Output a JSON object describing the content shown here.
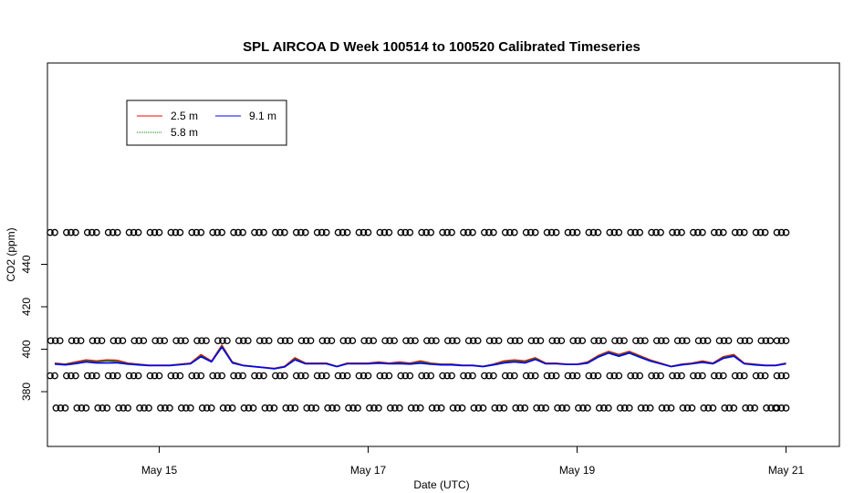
{
  "chart_data": {
    "type": "line",
    "title": "SPL AIRCOA D  Week 100514 to 100520  Calibrated Timeseries",
    "xlabel": "Date (UTC)",
    "ylabel": "CO2 (ppm)",
    "xlim": [
      0,
      7.1
    ],
    "ylim": [
      368,
      456
    ],
    "x_ticks": [
      {
        "x": 1,
        "label": "May 15"
      },
      {
        "x": 3,
        "label": "May 17"
      },
      {
        "x": 5,
        "label": "May 19"
      },
      {
        "x": 7,
        "label": "May 21"
      }
    ],
    "y_ticks": [
      {
        "y": 380,
        "label": "380"
      },
      {
        "y": 400,
        "label": "400"
      },
      {
        "y": 420,
        "label": "420"
      },
      {
        "y": 440,
        "label": "440"
      }
    ],
    "legend": {
      "placement": "top-left",
      "entries": [
        {
          "name": "2.5 m",
          "color": "#ff0000"
        },
        {
          "name": "5.8 m",
          "color": "#008000"
        },
        {
          "name": "9.1 m",
          "color": "#0000ff"
        }
      ]
    },
    "series": [
      {
        "name": "2.5 m",
        "color": "#ff0000",
        "x": [
          0.0,
          0.1,
          0.2,
          0.3,
          0.4,
          0.5,
          0.6,
          0.7,
          0.8,
          0.9,
          1.0,
          1.1,
          1.2,
          1.3,
          1.4,
          1.5,
          1.6,
          1.7,
          1.8,
          1.9,
          2.0,
          2.1,
          2.2,
          2.3,
          2.4,
          2.5,
          2.6,
          2.7,
          2.8,
          2.9,
          3.0,
          3.1,
          3.2,
          3.3,
          3.4,
          3.5,
          3.6,
          3.7,
          3.8,
          3.9,
          4.0,
          4.1,
          4.2,
          4.3,
          4.4,
          4.5,
          4.6,
          4.7,
          4.8,
          4.9,
          5.0,
          5.1,
          5.2,
          5.3,
          5.4,
          5.5,
          5.6,
          5.7,
          5.8,
          5.9,
          6.0,
          6.1,
          6.2,
          6.3,
          6.4,
          6.5,
          6.6,
          6.7,
          6.8,
          6.9,
          7.0
        ],
        "y": [
          393.5,
          393.0,
          394.0,
          395.0,
          394.5,
          395.0,
          394.8,
          393.5,
          393.0,
          392.5,
          392.5,
          392.5,
          393.0,
          393.5,
          397.5,
          394.5,
          402.0,
          394.0,
          392.5,
          392.0,
          391.5,
          391.0,
          392.0,
          396.0,
          393.5,
          393.5,
          393.5,
          392.0,
          393.5,
          393.5,
          393.5,
          394.0,
          393.5,
          394.0,
          393.5,
          394.5,
          393.5,
          393.0,
          393.0,
          392.5,
          392.5,
          392.0,
          393.0,
          394.5,
          395.0,
          394.5,
          396.0,
          393.5,
          393.5,
          393.0,
          393.0,
          394.0,
          397.0,
          399.0,
          397.5,
          399.0,
          397.0,
          395.0,
          393.5,
          392.0,
          393.0,
          393.5,
          394.5,
          393.5,
          396.5,
          397.5,
          393.5,
          393.0,
          392.5,
          392.5,
          393.5
        ]
      },
      {
        "name": "5.8 m",
        "color": "#008000",
        "x": [
          0.0,
          0.1,
          0.2,
          0.3,
          0.4,
          0.5,
          0.6,
          0.7,
          0.8,
          0.9,
          1.0,
          1.1,
          1.2,
          1.3,
          1.4,
          1.5,
          1.6,
          1.7,
          1.8,
          1.9,
          2.0,
          2.1,
          2.2,
          2.3,
          2.4,
          2.5,
          2.6,
          2.7,
          2.8,
          2.9,
          3.0,
          3.1,
          3.2,
          3.3,
          3.4,
          3.5,
          3.6,
          3.7,
          3.8,
          3.9,
          4.0,
          4.1,
          4.2,
          4.3,
          4.4,
          4.5,
          4.6,
          4.7,
          4.8,
          4.9,
          5.0,
          5.1,
          5.2,
          5.3,
          5.4,
          5.5,
          5.6,
          5.7,
          5.8,
          5.9,
          6.0,
          6.1,
          6.2,
          6.3,
          6.4,
          6.5,
          6.6,
          6.7,
          6.8,
          6.9,
          7.0
        ],
        "y": [
          393.2,
          392.8,
          393.6,
          394.5,
          394.0,
          394.5,
          394.2,
          393.2,
          392.8,
          392.4,
          392.4,
          392.4,
          392.8,
          393.3,
          397.0,
          394.2,
          401.5,
          393.8,
          392.4,
          391.9,
          391.4,
          390.9,
          391.8,
          395.5,
          393.3,
          393.3,
          393.3,
          391.9,
          393.3,
          393.3,
          393.3,
          393.7,
          393.3,
          393.6,
          393.2,
          394.0,
          393.2,
          392.8,
          392.8,
          392.4,
          392.4,
          391.9,
          392.8,
          394.0,
          394.5,
          394.0,
          395.6,
          393.3,
          393.3,
          392.9,
          392.9,
          393.7,
          396.6,
          398.6,
          397.1,
          398.6,
          396.6,
          394.7,
          393.3,
          391.9,
          392.8,
          393.3,
          394.1,
          393.3,
          396.1,
          397.1,
          393.3,
          392.8,
          392.4,
          392.4,
          393.3
        ]
      },
      {
        "name": "9.1 m",
        "color": "#0000ff",
        "x": [
          0.0,
          0.1,
          0.2,
          0.3,
          0.4,
          0.5,
          0.6,
          0.7,
          0.8,
          0.9,
          1.0,
          1.1,
          1.2,
          1.3,
          1.4,
          1.5,
          1.6,
          1.7,
          1.8,
          1.9,
          2.0,
          2.1,
          2.2,
          2.3,
          2.4,
          2.5,
          2.6,
          2.7,
          2.8,
          2.9,
          3.0,
          3.1,
          3.2,
          3.3,
          3.4,
          3.5,
          3.6,
          3.7,
          3.8,
          3.9,
          4.0,
          4.1,
          4.2,
          4.3,
          4.4,
          4.5,
          4.6,
          4.7,
          4.8,
          4.9,
          5.0,
          5.1,
          5.2,
          5.3,
          5.4,
          5.5,
          5.6,
          5.7,
          5.8,
          5.9,
          6.0,
          6.1,
          6.2,
          6.3,
          6.4,
          6.5,
          6.6,
          6.7,
          6.8,
          6.9,
          7.0
        ],
        "y": [
          393.0,
          392.6,
          393.2,
          394.0,
          393.5,
          393.5,
          393.6,
          393.0,
          392.6,
          392.3,
          392.3,
          392.3,
          392.7,
          393.1,
          396.5,
          394.0,
          401.0,
          393.5,
          392.3,
          391.8,
          391.3,
          390.8,
          391.6,
          395.0,
          393.1,
          393.1,
          393.1,
          391.8,
          393.1,
          393.1,
          393.1,
          393.4,
          393.1,
          393.2,
          393.0,
          393.4,
          392.9,
          392.6,
          392.6,
          392.3,
          392.3,
          391.8,
          392.6,
          393.5,
          394.0,
          393.5,
          395.2,
          393.1,
          393.1,
          392.8,
          392.8,
          393.4,
          396.2,
          398.2,
          396.7,
          398.2,
          396.2,
          394.4,
          393.1,
          391.8,
          392.6,
          393.1,
          393.8,
          393.1,
          395.7,
          396.7,
          393.1,
          392.6,
          392.3,
          392.3,
          393.1
        ]
      },
      {
        "name": "",
        "color": "#000000",
        "marker": "circle",
        "x": [
          0.0,
          0.2,
          0.4,
          0.6,
          0.8,
          1.0,
          1.2,
          1.4,
          1.6,
          1.8,
          2.0,
          2.2,
          2.4,
          2.6,
          2.8,
          3.0,
          3.2,
          3.4,
          3.6,
          3.8,
          4.0,
          4.2,
          4.4,
          4.6,
          4.8,
          5.0,
          5.2,
          5.4,
          5.6,
          5.8,
          6.0,
          6.2,
          6.4,
          6.6,
          6.8,
          7.0
        ],
        "y": [
          455,
          455,
          455,
          455,
          455,
          455,
          455,
          455,
          455,
          455,
          455,
          455,
          455,
          455,
          455,
          455,
          455,
          455,
          455,
          455,
          455,
          455,
          455,
          455,
          455,
          455,
          455,
          455,
          455,
          455,
          455,
          455,
          455,
          455,
          455,
          455
        ]
      },
      {
        "name": "",
        "color": "#000000",
        "marker": "circle",
        "x": [
          0.05,
          0.25,
          0.45,
          0.65,
          0.85,
          1.05,
          1.25,
          1.45,
          1.65,
          1.85,
          2.05,
          2.25,
          2.45,
          2.65,
          2.85,
          3.05,
          3.25,
          3.45,
          3.65,
          3.85,
          4.05,
          4.25,
          4.45,
          4.65,
          4.85,
          5.05,
          5.25,
          5.45,
          5.65,
          5.85,
          6.05,
          6.25,
          6.45,
          6.65,
          6.85,
          7.0
        ],
        "y": [
          404,
          404,
          404,
          404,
          404,
          404,
          404,
          404,
          404,
          404,
          404,
          404,
          404,
          404,
          404,
          404,
          404,
          404,
          404,
          404,
          404,
          404,
          404,
          404,
          404,
          404,
          404,
          404,
          404,
          404,
          404,
          404,
          404,
          404,
          404,
          404
        ]
      },
      {
        "name": "",
        "color": "#000000",
        "marker": "circle",
        "x": [
          0.0,
          0.2,
          0.4,
          0.6,
          0.8,
          1.0,
          1.2,
          1.4,
          1.6,
          1.8,
          2.0,
          2.2,
          2.4,
          2.6,
          2.8,
          3.0,
          3.2,
          3.4,
          3.6,
          3.8,
          4.0,
          4.2,
          4.4,
          4.6,
          4.8,
          5.0,
          5.2,
          5.4,
          5.6,
          5.8,
          6.0,
          6.2,
          6.4,
          6.6,
          6.8,
          7.0
        ],
        "y": [
          387.5,
          387.5,
          387.5,
          387.5,
          387.5,
          387.5,
          387.5,
          387.5,
          387.5,
          387.5,
          387.5,
          387.5,
          387.5,
          387.5,
          387.5,
          387.5,
          387.5,
          387.5,
          387.5,
          387.5,
          387.5,
          387.5,
          387.5,
          387.5,
          387.5,
          387.5,
          387.5,
          387.5,
          387.5,
          387.5,
          387.5,
          387.5,
          387.5,
          387.5,
          387.5,
          387.5
        ]
      },
      {
        "name": "",
        "color": "#000000",
        "marker": "circle",
        "x": [
          -0.1,
          0.1,
          0.3,
          0.5,
          0.7,
          0.9,
          1.1,
          1.3,
          1.5,
          1.7,
          1.9,
          2.1,
          2.3,
          2.5,
          2.7,
          2.9,
          3.1,
          3.3,
          3.5,
          3.7,
          3.9,
          4.1,
          4.3,
          4.5,
          4.7,
          4.9,
          5.1,
          5.3,
          5.5,
          5.7,
          5.9,
          6.1,
          6.3,
          6.5,
          6.7,
          6.9,
          7.0
        ],
        "y": [
          372.3,
          372.3,
          372.3,
          372.3,
          372.3,
          372.3,
          372.3,
          372.3,
          372.3,
          372.3,
          372.3,
          372.3,
          372.3,
          372.3,
          372.3,
          372.3,
          372.3,
          372.3,
          372.3,
          372.3,
          372.3,
          372.3,
          372.3,
          372.3,
          372.3,
          372.3,
          372.3,
          372.3,
          372.3,
          372.3,
          372.3,
          372.3,
          372.3,
          372.3,
          372.3,
          372.3,
          372.3
        ]
      }
    ]
  }
}
